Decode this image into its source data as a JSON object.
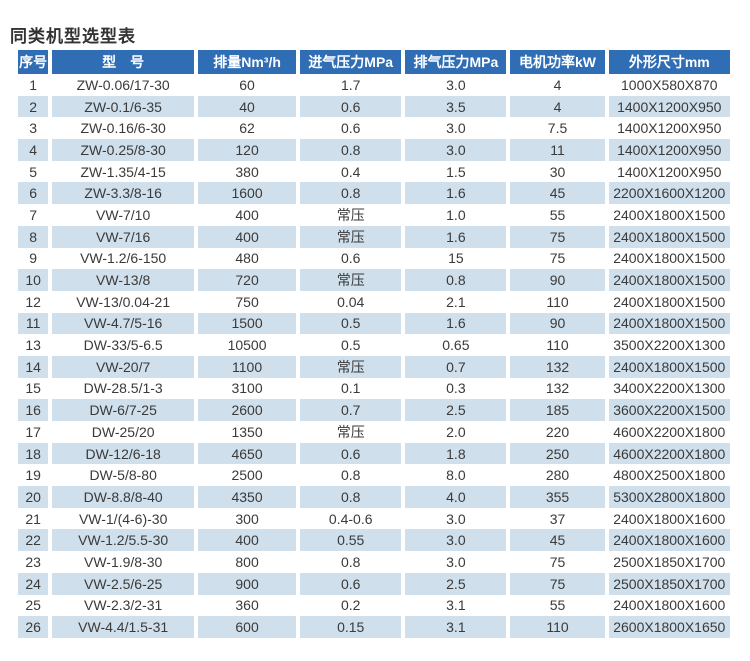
{
  "page_title": "同类机型选型表",
  "colors": {
    "header_bg": "#2f6db5",
    "header_text": "#ffffff",
    "row_alt_bg": "#cfdfeb",
    "body_text": "#3a3a3a",
    "title_text": "#333333"
  },
  "chart_data": {
    "type": "table",
    "title": "同类机型选型表",
    "columns": [
      "序号",
      "型　号",
      "排量Nm³/h",
      "进气压力MPa",
      "排气压力MPa",
      "电机功率kW",
      "外形尺寸mm"
    ],
    "rows": [
      [
        "1",
        "ZW-0.06/17-30",
        "60",
        "1.7",
        "3.0",
        "4",
        "1000X580X870"
      ],
      [
        "2",
        "ZW-0.1/6-35",
        "40",
        "0.6",
        "3.5",
        "4",
        "1400X1200X950"
      ],
      [
        "3",
        "ZW-0.16/6-30",
        "62",
        "0.6",
        "3.0",
        "7.5",
        "1400X1200X950"
      ],
      [
        "4",
        "ZW-0.25/8-30",
        "120",
        "0.8",
        "3.0",
        "11",
        "1400X1200X950"
      ],
      [
        "5",
        "ZW-1.35/4-15",
        "380",
        "0.4",
        "1.5",
        "30",
        "1400X1200X950"
      ],
      [
        "6",
        "ZW-3.3/8-16",
        "1600",
        "0.8",
        "1.6",
        "45",
        "2200X1600X1200"
      ],
      [
        "7",
        "VW-7/10",
        "400",
        "常压",
        "1.0",
        "55",
        "2400X1800X1500"
      ],
      [
        "8",
        "VW-7/16",
        "400",
        "常压",
        "1.6",
        "75",
        "2400X1800X1500"
      ],
      [
        "9",
        "VW-1.2/6-150",
        "480",
        "0.6",
        "15",
        "75",
        "2400X1800X1500"
      ],
      [
        "10",
        "VW-13/8",
        "720",
        "常压",
        "0.8",
        "90",
        "2400X1800X1500"
      ],
      [
        "12",
        "VW-13/0.04-21",
        "750",
        "0.04",
        "2.1",
        "110",
        "2400X1800X1500"
      ],
      [
        "11",
        "VW-4.7/5-16",
        "1500",
        "0.5",
        "1.6",
        "90",
        "2400X1800X1500"
      ],
      [
        "13",
        "DW-33/5-6.5",
        "10500",
        "0.5",
        "0.65",
        "110",
        "3500X2200X1300"
      ],
      [
        "14",
        "VW-20/7",
        "1100",
        "常压",
        "0.7",
        "132",
        "2400X1800X1500"
      ],
      [
        "15",
        "DW-28.5/1-3",
        "3100",
        "0.1",
        "0.3",
        "132",
        "3400X2200X1300"
      ],
      [
        "16",
        "DW-6/7-25",
        "2600",
        "0.7",
        "2.5",
        "185",
        "3600X2200X1500"
      ],
      [
        "17",
        "DW-25/20",
        "1350",
        "常压",
        "2.0",
        "220",
        "4600X2200X1800"
      ],
      [
        "18",
        "DW-12/6-18",
        "4650",
        "0.6",
        "1.8",
        "250",
        "4600X2200X1800"
      ],
      [
        "19",
        "DW-5/8-80",
        "2500",
        "0.8",
        "8.0",
        "280",
        "4800X2500X1800"
      ],
      [
        "20",
        "DW-8.8/8-40",
        "4350",
        "0.8",
        "4.0",
        "355",
        "5300X2800X1800"
      ],
      [
        "21",
        "VW-1/(4-6)-30",
        "300",
        "0.4-0.6",
        "3.0",
        "37",
        "2400X1800X1600"
      ],
      [
        "22",
        "VW-1.2/5.5-30",
        "400",
        "0.55",
        "3.0",
        "45",
        "2400X1800X1600"
      ],
      [
        "23",
        "VW-1.9/8-30",
        "800",
        "0.8",
        "3.0",
        "75",
        "2500X1850X1700"
      ],
      [
        "24",
        "VW-2.5/6-25",
        "900",
        "0.6",
        "2.5",
        "75",
        "2500X1850X1700"
      ],
      [
        "25",
        "VW-2.3/2-31",
        "360",
        "0.2",
        "3.1",
        "55",
        "2400X1800X1600"
      ],
      [
        "26",
        "VW-4.4/1.5-31",
        "600",
        "0.15",
        "3.1",
        "110",
        "2600X1800X1650"
      ]
    ]
  }
}
